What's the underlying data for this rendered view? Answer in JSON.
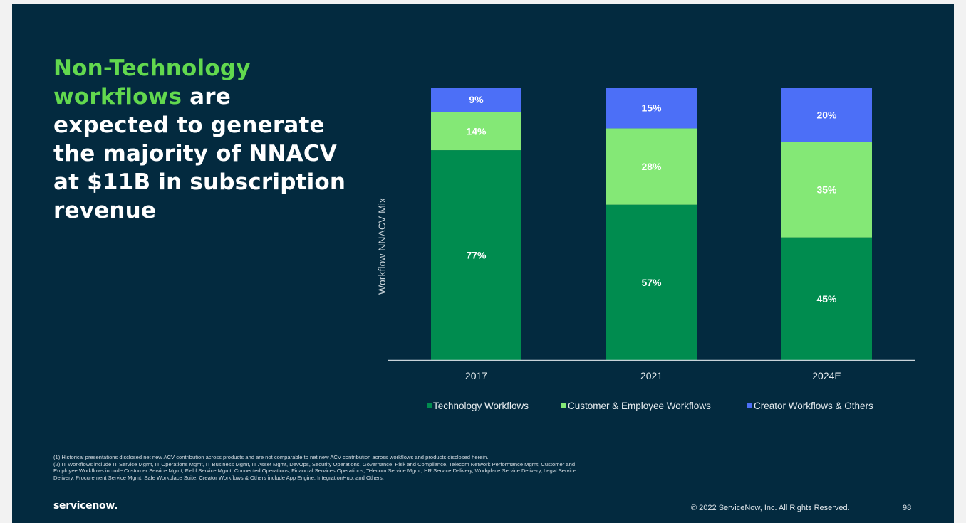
{
  "headline": {
    "highlight": "Non-Technology workflows",
    "rest": " are expected to generate the majority of NNACV at $11B in subscription revenue"
  },
  "chart_data": {
    "type": "bar",
    "stacked": true,
    "title": "",
    "xlabel": "",
    "ylabel": "Workflow NNACV Mix",
    "ylim": [
      0,
      100
    ],
    "grid": false,
    "legend_position": "bottom",
    "categories": [
      "2017",
      "2021",
      "2024E"
    ],
    "series": [
      {
        "name": "Technology Workflows",
        "values": [
          77,
          57,
          45
        ],
        "labels": [
          "77%",
          "57%",
          "45%"
        ],
        "color": "#008c4f"
      },
      {
        "name": "Customer & Employee Workflows",
        "values": [
          14,
          28,
          35
        ],
        "labels": [
          "14%",
          "28%",
          "35%"
        ],
        "color": "#84e876"
      },
      {
        "name": "Creator Workflows & Others",
        "values": [
          9,
          15,
          20
        ],
        "labels": [
          "9%",
          "15%",
          "20%"
        ],
        "color": "#4c6ff7"
      }
    ]
  },
  "footnotes": [
    "(1) Historical presentations disclosed net new ACV contribution across products and are not comparable to net new ACV contribution across workflows and products disclosed herein.",
    "(2) IT Workflows include IT Service Mgmt, IT Operations Mgmt, IT Business Mgmt, IT Asset Mgmt, DevOps, Security Operations, Governance, Risk and Compliance, Telecom Network Performance Mgmt; Customer and Employee Workflows include Customer Service Mgmt, Field Service Mgmt, Connected Operations, Financial Services Operations, Telecom Service Mgmt, HR Service Delivery, Workplace Service Delivery, Legal Service Delivery, Procurement Service Mgmt, Safe Workplace Suite; Creator Workflows & Others include App Engine, IntegrationHub, and Others."
  ],
  "footer": {
    "logo": "servicenow.",
    "copyright": "© 2022 ServiceNow, Inc. All Rights Reserved.",
    "page_number": "98"
  },
  "colors": {
    "background": "#032a3f",
    "highlight": "#62d84e",
    "text": "#ffffff"
  }
}
